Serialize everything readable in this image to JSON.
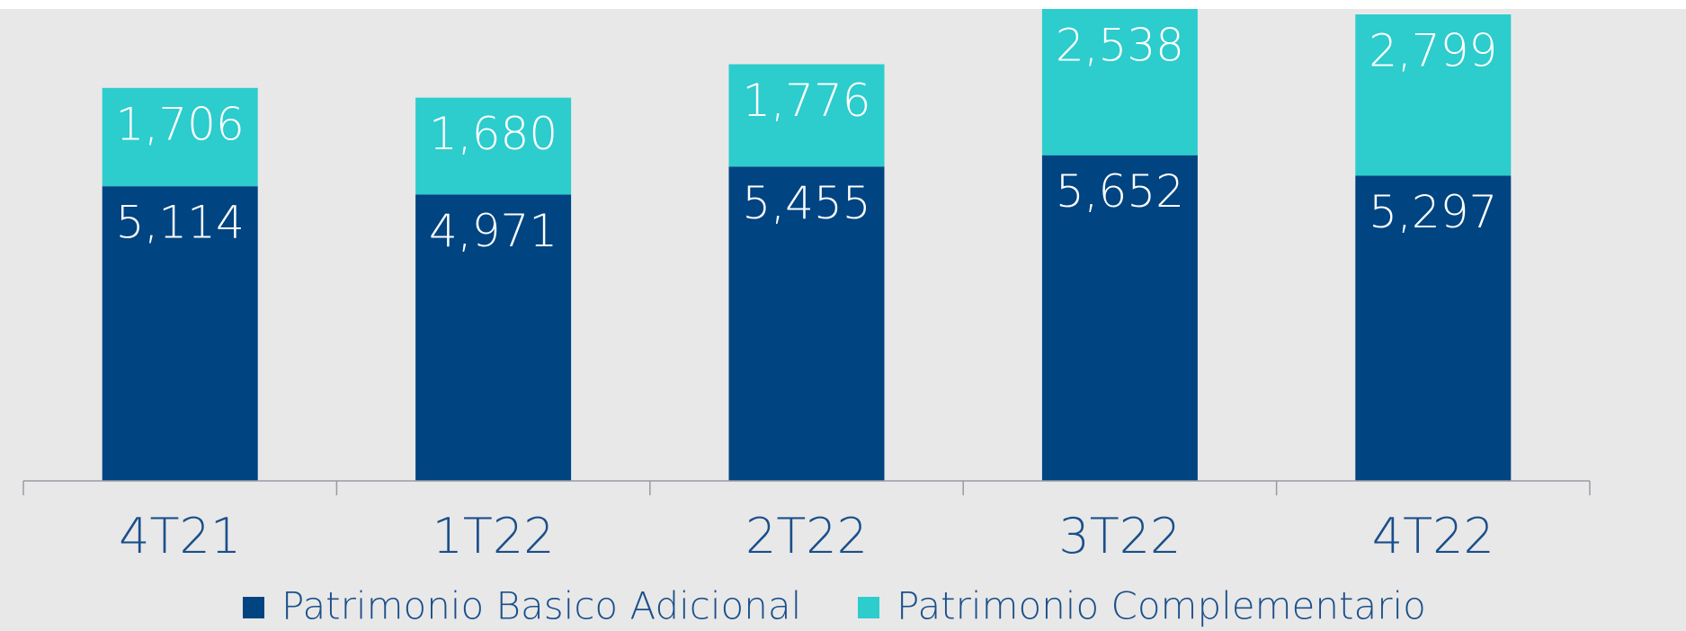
{
  "chart_data": {
    "type": "stacked_bar",
    "categories": [
      "4T21",
      "1T22",
      "2T22",
      "3T22",
      "4T22"
    ],
    "series": [
      {
        "name": "Patrimonio Basico Adicional",
        "color": "#004481",
        "values": [
          5114,
          4971,
          5455,
          5652,
          5297
        ],
        "value_labels": [
          "5,114",
          "4,971",
          "5,455",
          "5,652",
          "5,297"
        ]
      },
      {
        "name": "Patrimonio Complementario",
        "color": "#2dcccd",
        "values": [
          1706,
          1680,
          1776,
          2538,
          2799
        ],
        "value_labels": [
          "1,706",
          "1,680",
          "1,776",
          "2,538",
          "2,799"
        ]
      }
    ]
  }
}
